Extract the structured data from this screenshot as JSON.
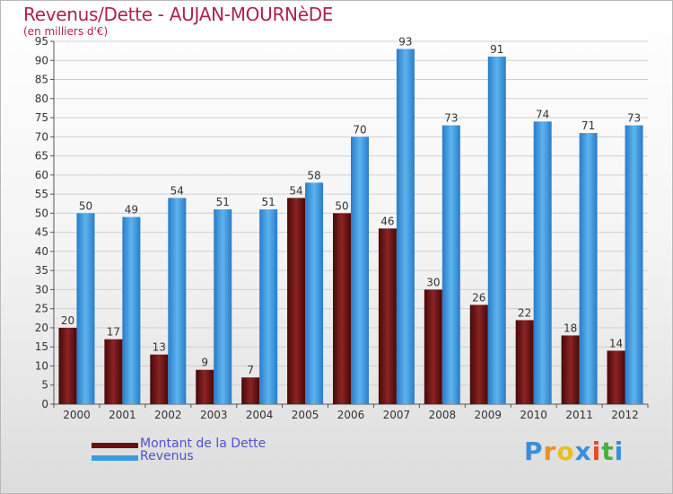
{
  "header": {
    "title": "Revenus/Dette - AUJAN-MOURNèDE",
    "subtitle": "(en milliers d'€)"
  },
  "legend": {
    "items": [
      {
        "label": "Montant de la Dette",
        "color": "#6a1010"
      },
      {
        "label": "Revenus",
        "color": "#3a9ae0"
      }
    ]
  },
  "logo": {
    "text": "Proxiti",
    "colors": [
      "#3a8fd8",
      "#e8902a",
      "#e8c020",
      "#3a8fd8",
      "#e84a2a",
      "#4ab040",
      "#3a8fd8"
    ]
  },
  "chart_data": {
    "type": "bar",
    "title": "Revenus/Dette - AUJAN-MOURNèDE",
    "subtitle": "(en milliers d'€)",
    "xlabel": "",
    "ylabel": "",
    "ylim": [
      0,
      95
    ],
    "yticks": [
      0,
      5,
      10,
      15,
      20,
      25,
      30,
      35,
      40,
      45,
      50,
      55,
      60,
      65,
      70,
      75,
      80,
      85,
      90,
      95
    ],
    "grid": true,
    "legend_position": "bottom-left",
    "categories": [
      "2000",
      "2001",
      "2002",
      "2003",
      "2004",
      "2005",
      "2006",
      "2007",
      "2008",
      "2009",
      "2010",
      "2011",
      "2012"
    ],
    "series": [
      {
        "name": "Montant de la Dette",
        "color": "#6a1010",
        "values": [
          20,
          17,
          13,
          9,
          7,
          54,
          50,
          46,
          30,
          26,
          22,
          18,
          14
        ]
      },
      {
        "name": "Revenus",
        "color": "#3a9ae0",
        "values": [
          50,
          49,
          54,
          51,
          51,
          58,
          70,
          93,
          73,
          91,
          74,
          71,
          73
        ]
      }
    ]
  }
}
